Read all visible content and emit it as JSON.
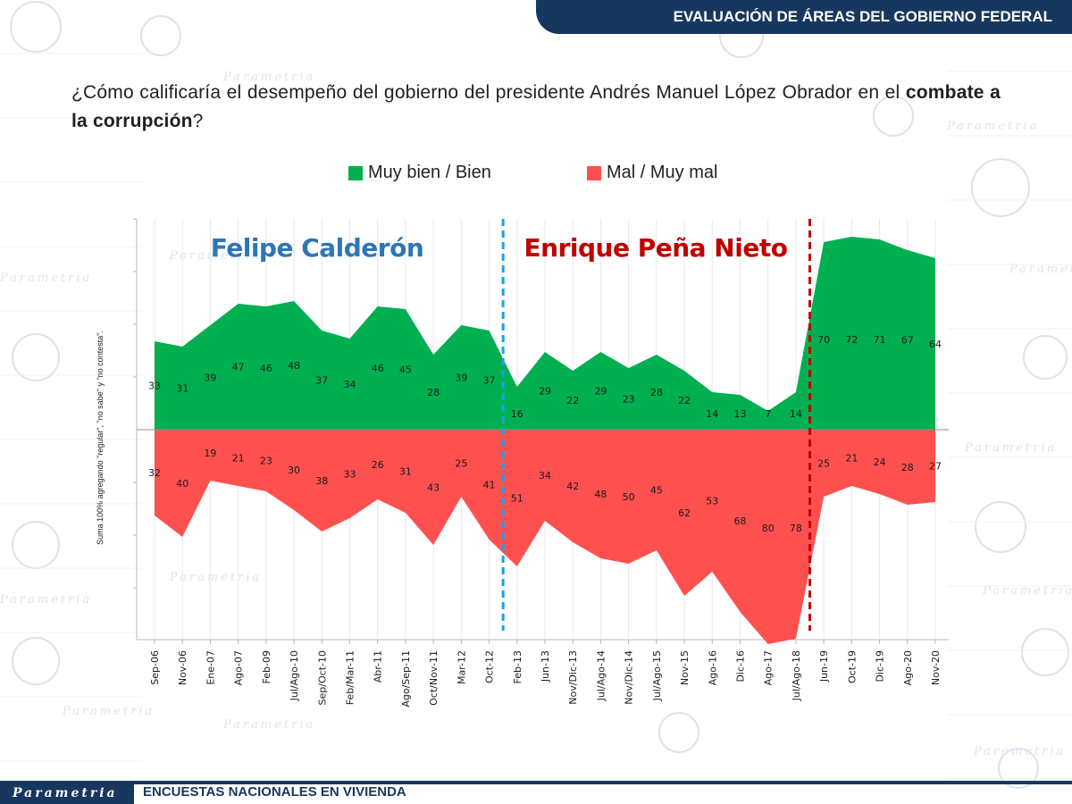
{
  "header": {
    "title": "EVALUACIÓN DE ÁREAS DEL GOBIERNO FEDERAL"
  },
  "question": {
    "part1": "¿Cómo calificaría el desempeño del gobierno del presidente Andrés Manuel López Obrador en el",
    "bold": "combate a la corrupción",
    "end": "?"
  },
  "side_note": "Suma 100% agregando \"regular\", \"no sabe\" y \"no contesta\".",
  "footer": {
    "logo": "Parametria",
    "text": "ENCUESTAS NACIONALES EN VIVIENDA"
  },
  "watermark": {
    "text": "Parametria"
  },
  "colors": {
    "positive": "#00b050",
    "negative": "#ff5050",
    "navy": "#17375e",
    "calderon": "#2e75b6",
    "pena": "#c00000",
    "divider_blue": "#1fa0e0",
    "divider_red": "#c00000"
  },
  "chart_data": {
    "type": "area",
    "title": "",
    "categories": [
      "Sep-06",
      "Nov-06",
      "Ene-07",
      "Ago-07",
      "Feb-09",
      "Jul/Ago-10",
      "Sep/Oct-10",
      "Feb/Mar-11",
      "Abr-11",
      "Ago/Sep-11",
      "Oct/Nov-11",
      "Mar-12",
      "Oct-12",
      "Feb-13",
      "Jun-13",
      "Nov/Dic-13",
      "Jul/Ago-14",
      "Nov/Dic-14",
      "Jul/Ago-15",
      "Nov-15",
      "Ago-16",
      "Dic-16",
      "Ago-17",
      "Jul/Ago-18",
      "Jun-19",
      "Oct-19",
      "Dic-19",
      "Ago-20",
      "Nov-20"
    ],
    "series": [
      {
        "name": "Muy bien / Bien",
        "color": "#00b050",
        "direction": "up",
        "values": [
          33,
          31,
          39,
          47,
          46,
          48,
          37,
          34,
          46,
          45,
          28,
          39,
          37,
          16,
          29,
          22,
          29,
          23,
          28,
          22,
          14,
          13,
          7,
          14,
          70,
          72,
          71,
          67,
          64
        ]
      },
      {
        "name": "Mal / Muy mal",
        "color": "#ff5050",
        "direction": "down",
        "values": [
          32,
          40,
          19,
          21,
          23,
          30,
          38,
          33,
          26,
          31,
          43,
          25,
          41,
          51,
          34,
          42,
          48,
          50,
          45,
          62,
          53,
          68,
          80,
          78,
          25,
          21,
          24,
          28,
          27
        ]
      }
    ],
    "periods": [
      {
        "label": "Felipe Calderón",
        "color": "#2e75b6"
      },
      {
        "label": "Enrique Peña Nieto",
        "color": "#c00000"
      }
    ],
    "dividers": [
      {
        "after_category": "Oct-12",
        "color": "#1fa0e0"
      },
      {
        "after_category": "Jul/Ago-18",
        "color": "#c00000"
      }
    ],
    "xlabel": "",
    "ylabel": "",
    "ylim": [
      -80,
      80
    ],
    "legend": "top-center"
  }
}
